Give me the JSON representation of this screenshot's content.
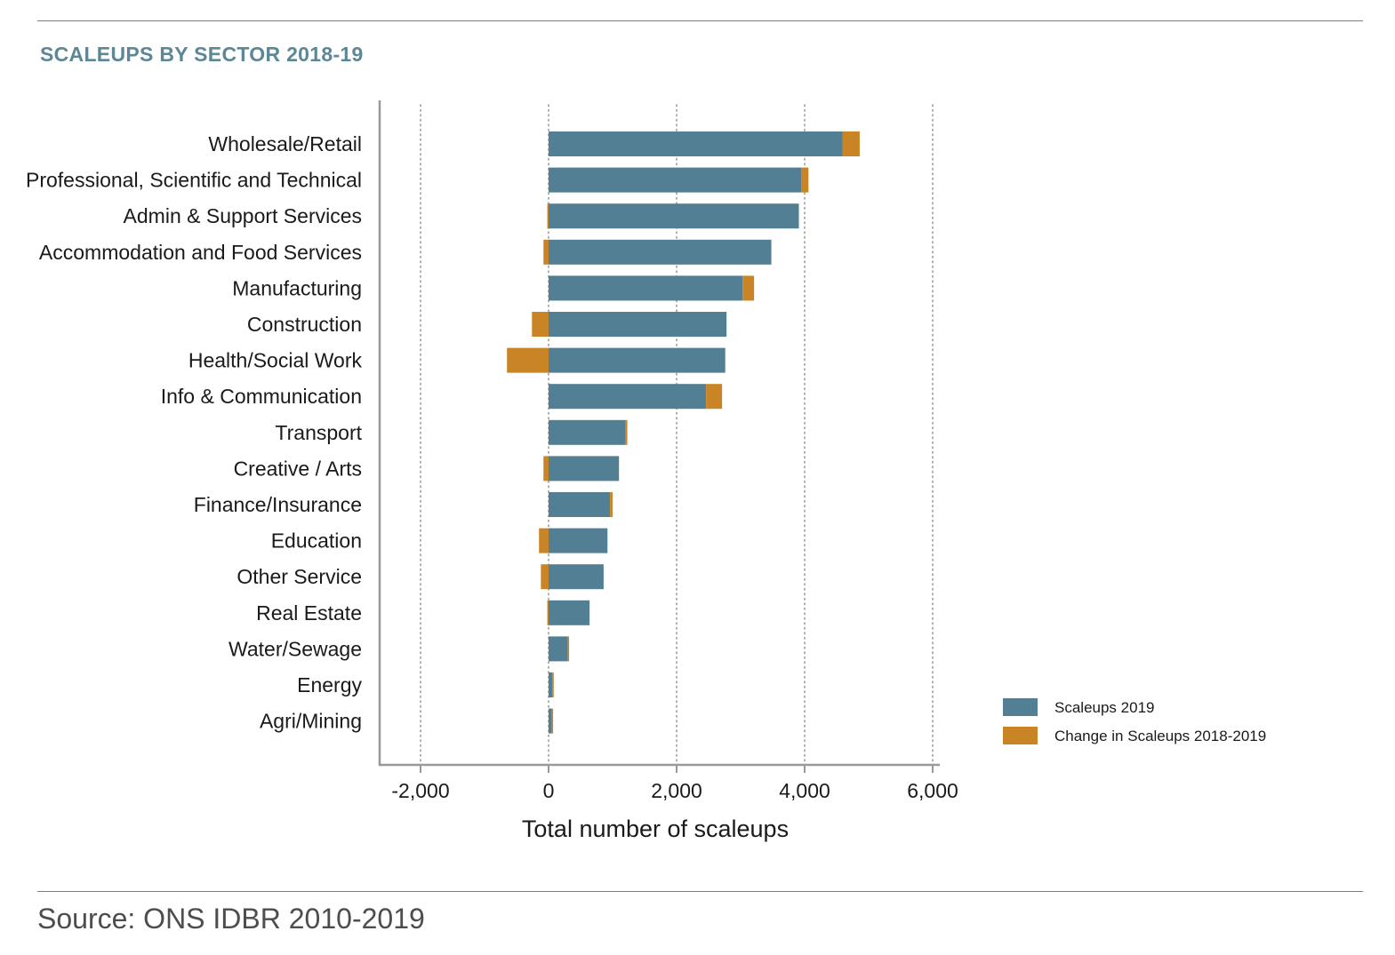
{
  "header": {
    "title": "SCALEUPS BY SECTOR 2018-19"
  },
  "footer": {
    "source": "Source: ONS IDBR 2010-2019"
  },
  "colors": {
    "scaleups_2019": "#527f93",
    "change": "#c98525",
    "axis": "#999999",
    "grid": "#9a9a9a",
    "rule": "#5b8796",
    "text": "#1a1a1a"
  },
  "chart_data": {
    "type": "bar",
    "orientation": "horizontal",
    "stacked": true,
    "xlabel": "Total number of scaleups",
    "xlim": [
      -2600,
      6000
    ],
    "xticks": [
      -2000,
      0,
      2000,
      4000,
      6000
    ],
    "xtick_labels": [
      "-2,000",
      "0",
      "2,000",
      "4,000",
      "6,000"
    ],
    "grid": "vertical dotted",
    "legend_position": "bottom-right",
    "categories": [
      "Wholesale/Retail",
      "Professional, Scientific and Technical",
      "Admin & Support Services",
      "Accommodation and Food Services",
      "Manufacturing",
      "Construction",
      "Health/Social Work",
      "Info & Communication",
      "Transport",
      "Creative / Arts",
      "Finance/Insurance",
      "Education",
      "Other Service",
      "Real Estate",
      "Water/Sewage",
      "Energy",
      "Agri/Mining"
    ],
    "series": [
      {
        "name": "Scaleups 2019",
        "values": [
          4590,
          3950,
          3910,
          3480,
          3030,
          2780,
          2760,
          2460,
          1200,
          1100,
          960,
          920,
          860,
          640,
          300,
          60,
          50
        ]
      },
      {
        "name": "Change in Scaleups 2018-2019",
        "values": [
          270,
          110,
          -20,
          -80,
          180,
          -260,
          -650,
          250,
          30,
          -80,
          40,
          -150,
          -120,
          -20,
          10,
          20,
          10
        ]
      }
    ]
  }
}
